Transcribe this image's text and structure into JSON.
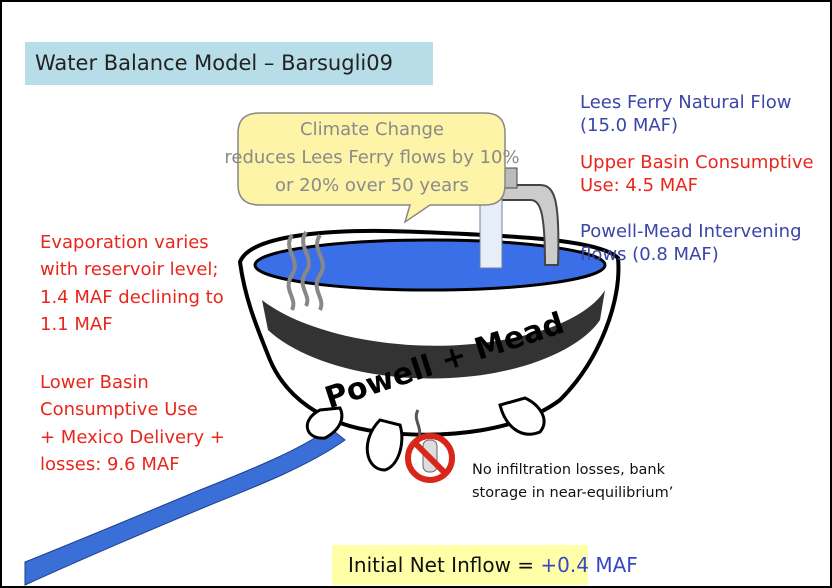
{
  "title": "Water Balance Model – Barsugli09",
  "callout": {
    "lines": [
      "Climate Change",
      "reduces Lees Ferry flows by 10%",
      "or 20% over 50 years"
    ]
  },
  "right_notes": [
    {
      "lines": [
        "Lees Ferry Natural Flow",
        "(15.0 MAF)"
      ]
    },
    {
      "lines": [
        "Upper Basin Consumptive",
        "Use: 4.5 MAF"
      ]
    },
    {
      "lines": [
        "Powell-Mead Intervening",
        "flows (0.8 MAF)"
      ]
    }
  ],
  "left_notes": [
    {
      "lines": [
        "Evaporation varies",
        "with reservoir level;",
        "1.4 MAF declining to",
        "1.1 MAF"
      ]
    },
    {
      "lines": [
        "Lower Basin",
        "Consumptive Use",
        "+ Mexico Delivery +",
        "losses: 9.6 MAF"
      ]
    }
  ],
  "tub_label": "Powell + Mead",
  "infiltration_note": {
    "lines": [
      "No infiltration losses, bank",
      "storage in near-equilibrium’"
    ]
  },
  "net_inflow": {
    "label": "Initial Net Inflow = ",
    "value": "+0.4 MAF"
  }
}
